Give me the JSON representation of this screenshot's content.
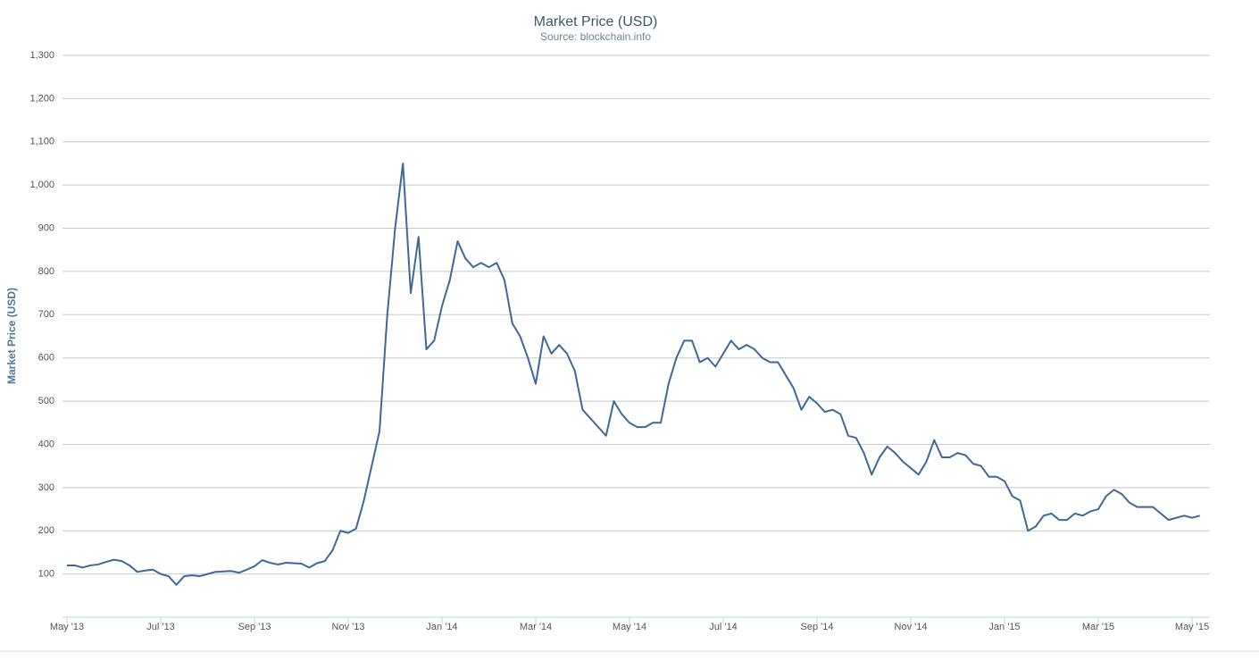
{
  "chart_data": {
    "type": "line",
    "title": "Market Price (USD)",
    "subtitle": "Source: blockchain.info",
    "y_label": "Market Price (USD)",
    "color": "#3f6899",
    "grid": true,
    "ylim": [
      0,
      1300
    ],
    "yticks": [
      100,
      200,
      300,
      400,
      500,
      600,
      700,
      800,
      900,
      {
        "value": 1000,
        "label": "1,000"
      },
      {
        "value": 1100,
        "label": "1,100"
      },
      {
        "value": 1200,
        "label": "1,200"
      },
      {
        "value": 1300,
        "label": "1,300"
      }
    ],
    "categories": [
      "May '13",
      null,
      null,
      null,
      null,
      null,
      null,
      null,
      null,
      null,
      null,
      null,
      "Jul '13",
      null,
      null,
      null,
      null,
      null,
      null,
      null,
      null,
      null,
      null,
      null,
      "Sep '13",
      null,
      null,
      null,
      null,
      null,
      null,
      null,
      null,
      null,
      null,
      null,
      "Nov '13",
      null,
      null,
      null,
      null,
      null,
      null,
      null,
      null,
      null,
      null,
      null,
      "Jan '14",
      null,
      null,
      null,
      null,
      null,
      null,
      null,
      null,
      null,
      null,
      null,
      "Mar '14",
      null,
      null,
      null,
      null,
      null,
      null,
      null,
      null,
      null,
      null,
      null,
      "May '14",
      null,
      null,
      null,
      null,
      null,
      null,
      null,
      null,
      null,
      null,
      null,
      "Jul '14",
      null,
      null,
      null,
      null,
      null,
      null,
      null,
      null,
      null,
      null,
      null,
      "Sep '14",
      null,
      null,
      null,
      null,
      null,
      null,
      null,
      null,
      null,
      null,
      null,
      "Nov '14",
      null,
      null,
      null,
      null,
      null,
      null,
      null,
      null,
      null,
      null,
      null,
      "Jan '15",
      null,
      null,
      null,
      null,
      null,
      null,
      null,
      null,
      null,
      null,
      null,
      "Mar '15",
      null,
      null,
      null,
      null,
      null,
      null,
      null,
      null,
      null,
      null,
      null,
      "May '15",
      null
    ],
    "values": [
      120,
      120,
      115,
      120,
      122,
      128,
      133,
      130,
      120,
      105,
      108,
      110,
      100,
      95,
      75,
      95,
      97,
      95,
      100,
      105,
      106,
      107,
      103,
      110,
      118,
      132,
      126,
      122,
      126,
      125,
      124,
      115,
      125,
      130,
      155,
      200,
      195,
      205,
      270,
      350,
      430,
      700,
      900,
      1050,
      750,
      880,
      620,
      640,
      720,
      780,
      870,
      830,
      810,
      820,
      810,
      820,
      780,
      680,
      650,
      600,
      540,
      650,
      610,
      630,
      610,
      570,
      480,
      460,
      440,
      420,
      500,
      470,
      450,
      440,
      440,
      450,
      450,
      540,
      600,
      640,
      640,
      590,
      600,
      580,
      610,
      640,
      620,
      630,
      620,
      600,
      590,
      590,
      560,
      530,
      480,
      510,
      495,
      475,
      480,
      470,
      420,
      415,
      380,
      330,
      370,
      395,
      380,
      360,
      345,
      330,
      360,
      410,
      370,
      370,
      380,
      375,
      355,
      350,
      325,
      325,
      315,
      280,
      270,
      200,
      210,
      235,
      240,
      225,
      225,
      240,
      235,
      245,
      250,
      280,
      295,
      285,
      265,
      255,
      255,
      255,
      240,
      225,
      230,
      235,
      230,
      235
    ]
  }
}
